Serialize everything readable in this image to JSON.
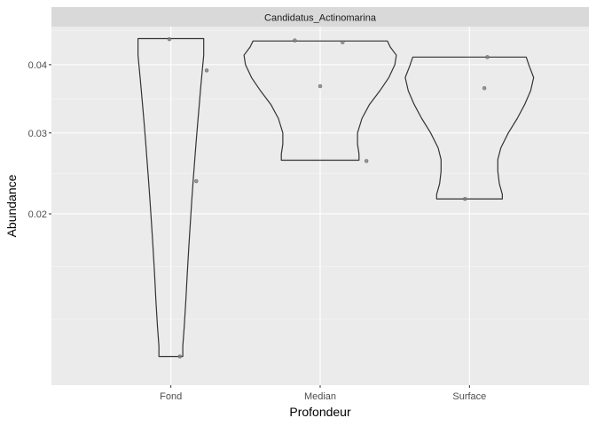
{
  "chart_data": {
    "type": "violin",
    "facet_label": "Candidatus_Actinomarina",
    "xlabel": "Profondeur",
    "ylabel": "Abundance",
    "categories": [
      "Fond",
      "Median",
      "Surface"
    ],
    "y_scale": "sqrt",
    "y_ticks": [
      {
        "value": 0.02,
        "label": "0.02"
      },
      {
        "value": 0.03,
        "label": "0.03"
      },
      {
        "value": 0.04,
        "label": "0.04"
      }
    ],
    "ylim": [
      0.0055,
      0.0462
    ],
    "grid": true,
    "groups": [
      {
        "category": "Fond",
        "points": [
          {
            "x_jitter": -0.01,
            "y": 0.0441
          },
          {
            "x_jitter": 0.24,
            "y": 0.0391
          },
          {
            "x_jitter": 0.17,
            "y": 0.0238
          },
          {
            "x_jitter": 0.06,
            "y": 0.0073
          }
        ],
        "violin": {
          "ymin": 0.0073,
          "ymax": 0.0442,
          "profile": [
            [
              0.0073,
              0.08
            ],
            [
              0.008,
              0.08
            ],
            [
              0.0095,
              0.09
            ],
            [
              0.0115,
              0.1
            ],
            [
              0.014,
              0.11
            ],
            [
              0.0165,
              0.12
            ],
            [
              0.019,
              0.13
            ],
            [
              0.0215,
              0.14
            ],
            [
              0.024,
              0.15
            ],
            [
              0.0265,
              0.16
            ],
            [
              0.029,
              0.17
            ],
            [
              0.0315,
              0.18
            ],
            [
              0.034,
              0.19
            ],
            [
              0.0365,
              0.2
            ],
            [
              0.039,
              0.21
            ],
            [
              0.0415,
              0.22
            ],
            [
              0.0435,
              0.22
            ],
            [
              0.0442,
              0.22
            ]
          ]
        }
      },
      {
        "category": "Median",
        "points": [
          {
            "x_jitter": -0.17,
            "y": 0.0439
          },
          {
            "x_jitter": 0.15,
            "y": 0.0436
          },
          {
            "x_jitter": 0.0,
            "y": 0.0367
          },
          {
            "x_jitter": 0.31,
            "y": 0.0263
          }
        ],
        "violin": {
          "ymin": 0.0264,
          "ymax": 0.0438,
          "profile": [
            [
              0.0264,
              0.26
            ],
            [
              0.0272,
              0.26
            ],
            [
              0.0285,
              0.25
            ],
            [
              0.03,
              0.25
            ],
            [
              0.032,
              0.28
            ],
            [
              0.034,
              0.33
            ],
            [
              0.036,
              0.4
            ],
            [
              0.038,
              0.46
            ],
            [
              0.04,
              0.5
            ],
            [
              0.0415,
              0.51
            ],
            [
              0.0428,
              0.47
            ],
            [
              0.0438,
              0.45
            ]
          ]
        }
      },
      {
        "category": "Surface",
        "points": [
          {
            "x_jitter": 0.12,
            "y": 0.0412
          },
          {
            "x_jitter": 0.1,
            "y": 0.0364
          },
          {
            "x_jitter": -0.03,
            "y": 0.0217
          }
        ],
        "violin": {
          "ymin": 0.0217,
          "ymax": 0.0412,
          "profile": [
            [
              0.0217,
              0.22
            ],
            [
              0.0222,
              0.22
            ],
            [
              0.0235,
              0.2
            ],
            [
              0.025,
              0.19
            ],
            [
              0.0265,
              0.19
            ],
            [
              0.028,
              0.21
            ],
            [
              0.03,
              0.26
            ],
            [
              0.032,
              0.32
            ],
            [
              0.034,
              0.37
            ],
            [
              0.036,
              0.41
            ],
            [
              0.038,
              0.43
            ],
            [
              0.0398,
              0.4
            ],
            [
              0.0412,
              0.38
            ]
          ]
        }
      }
    ]
  }
}
